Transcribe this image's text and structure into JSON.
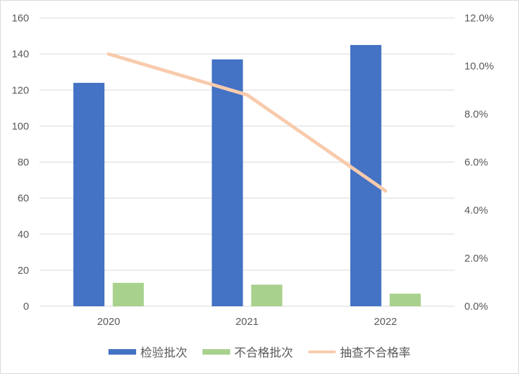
{
  "chart_data": {
    "type": "bar+line",
    "categories": [
      "2020",
      "2021",
      "2022"
    ],
    "series": [
      {
        "name": "检验批次",
        "type": "bar",
        "axis": "left",
        "color": "#4472C4",
        "values": [
          124,
          137,
          145
        ]
      },
      {
        "name": "不合格批次",
        "type": "bar",
        "axis": "left",
        "color": "#A9D18E",
        "values": [
          13,
          12,
          7
        ]
      },
      {
        "name": "抽查不合格率",
        "type": "line",
        "axis": "right",
        "color": "#F8CBAD",
        "values": [
          10.5,
          8.8,
          4.8
        ]
      }
    ],
    "ylim": [
      0,
      160
    ],
    "yticks": [
      "0",
      "20",
      "40",
      "60",
      "80",
      "100",
      "120",
      "140",
      "160"
    ],
    "y2lim": [
      0,
      12
    ],
    "y2ticks": [
      "0.0%",
      "2.0%",
      "4.0%",
      "6.0%",
      "8.0%",
      "10.0%",
      "12.0%"
    ],
    "grid": true,
    "legend": "bottom"
  }
}
